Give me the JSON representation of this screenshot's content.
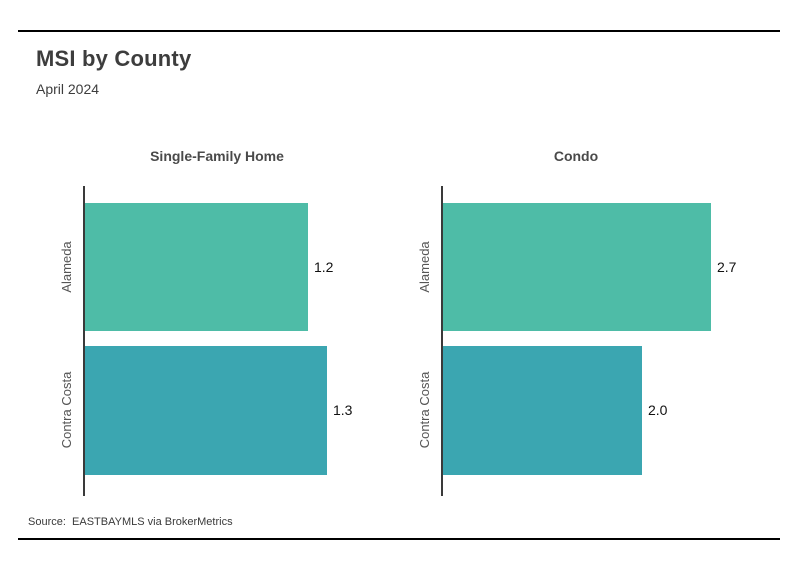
{
  "page": {
    "title": "MSI by County",
    "subtitle": "April 2024",
    "source": "Source:  EASTBAYMLS via BrokerMetrics"
  },
  "colors": {
    "alameda_bar": "#4ebca7",
    "contra_costa_bar": "#3ba6b1",
    "axis_line": "#3a3a3a",
    "rule_line": "#000000",
    "title_text": "#3d3d3d",
    "value_text": "#111111",
    "category_text": "#555555"
  },
  "chart_data": [
    {
      "type": "bar",
      "orientation": "horizontal",
      "title": "Single-Family Home",
      "categories": [
        "Alameda",
        "Contra Costa"
      ],
      "values": [
        1.2,
        1.3
      ],
      "value_labels": [
        "1.2",
        "1.3"
      ],
      "xlim": [
        0,
        1.44
      ],
      "grid": false,
      "legend": "none"
    },
    {
      "type": "bar",
      "orientation": "horizontal",
      "title": "Condo",
      "categories": [
        "Alameda",
        "Contra Costa"
      ],
      "values": [
        2.7,
        2.0
      ],
      "value_labels": [
        "2.7",
        "2.0"
      ],
      "xlim": [
        0,
        2.7
      ],
      "grid": false,
      "legend": "none"
    }
  ]
}
